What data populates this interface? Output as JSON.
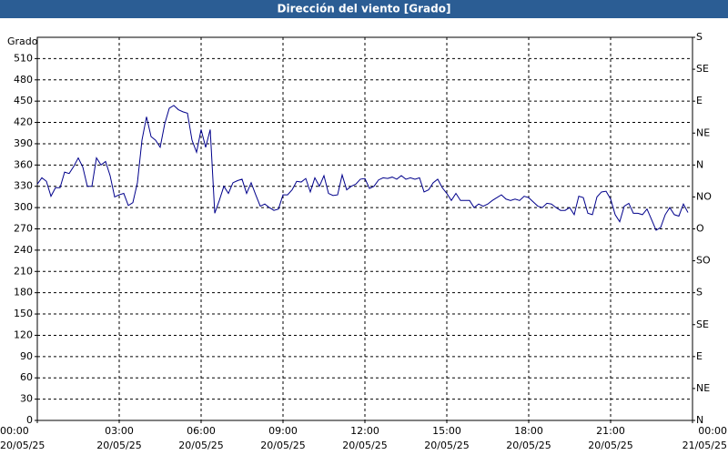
{
  "chart_data": {
    "type": "line",
    "title": "Dirección del viento [Grado]",
    "y_label": "Grado",
    "xlim": [
      0,
      1440
    ],
    "ylim": [
      0,
      540
    ],
    "y2lim": [
      0,
      540
    ],
    "grid": true,
    "xticks": [
      {
        "value": 0,
        "label": [
          "00:00",
          "20/05/25"
        ]
      },
      {
        "value": 180,
        "label": [
          "03:00",
          "20/05/25"
        ]
      },
      {
        "value": 360,
        "label": [
          "06:00",
          "20/05/25"
        ]
      },
      {
        "value": 540,
        "label": [
          "09:00",
          "20/05/25"
        ]
      },
      {
        "value": 720,
        "label": [
          "12:00",
          "20/05/25"
        ]
      },
      {
        "value": 900,
        "label": [
          "15:00",
          "20/05/25"
        ]
      },
      {
        "value": 1080,
        "label": [
          "18:00",
          "20/05/25"
        ]
      },
      {
        "value": 1260,
        "label": [
          "21:00",
          "20/05/25"
        ]
      },
      {
        "value": 1440,
        "label": [
          "00:00",
          "21/05/25"
        ]
      }
    ],
    "yticks": [
      0,
      30,
      60,
      90,
      120,
      150,
      180,
      210,
      240,
      270,
      300,
      330,
      360,
      390,
      420,
      450,
      480,
      510
    ],
    "y2ticks": [
      {
        "value": 0,
        "label": "N"
      },
      {
        "value": 45,
        "label": "NE"
      },
      {
        "value": 90,
        "label": "E"
      },
      {
        "value": 135,
        "label": "SE"
      },
      {
        "value": 180,
        "label": "S"
      },
      {
        "value": 225,
        "label": "SO"
      },
      {
        "value": 270,
        "label": "O"
      },
      {
        "value": 315,
        "label": "NO"
      },
      {
        "value": 360,
        "label": "N"
      },
      {
        "value": 405,
        "label": "NE"
      },
      {
        "value": 450,
        "label": "E"
      },
      {
        "value": 495,
        "label": "SE"
      },
      {
        "value": 540,
        "label": "S"
      }
    ],
    "x": [
      0,
      10,
      20,
      30,
      40,
      50,
      60,
      70,
      80,
      90,
      100,
      110,
      120,
      130,
      140,
      150,
      160,
      170,
      180,
      190,
      200,
      210,
      220,
      230,
      240,
      250,
      260,
      270,
      280,
      290,
      300,
      310,
      320,
      330,
      340,
      350,
      360,
      370,
      380,
      390,
      400,
      410,
      420,
      430,
      440,
      450,
      460,
      470,
      480,
      490,
      500,
      510,
      520,
      530,
      540,
      550,
      560,
      570,
      580,
      590,
      600,
      610,
      620,
      630,
      640,
      650,
      660,
      670,
      680,
      690,
      700,
      710,
      720,
      730,
      740,
      750,
      760,
      770,
      780,
      790,
      800,
      810,
      820,
      830,
      840,
      850,
      860,
      870,
      880,
      890,
      900,
      910,
      920,
      930,
      940,
      950,
      960,
      970,
      980,
      990,
      1000,
      1010,
      1020,
      1030,
      1040,
      1050,
      1060,
      1070,
      1080,
      1090,
      1100,
      1110,
      1120,
      1130,
      1140,
      1150,
      1160,
      1170,
      1180,
      1190,
      1200,
      1210,
      1220,
      1230,
      1240,
      1250,
      1260,
      1270,
      1280,
      1290,
      1300,
      1310,
      1320,
      1330,
      1340,
      1350,
      1360,
      1370,
      1380,
      1390,
      1400,
      1410,
      1420,
      1430
    ],
    "series": [
      {
        "color": "#00008b",
        "values": [
          333,
          342,
          337,
          316,
          328,
          328,
          350,
          348,
          358,
          370,
          357,
          330,
          330,
          370,
          360,
          365,
          345,
          315,
          318,
          320,
          303,
          307,
          335,
          395,
          428,
          400,
          395,
          385,
          418,
          440,
          444,
          438,
          435,
          433,
          395,
          378,
          410,
          385,
          410,
          292,
          310,
          330,
          320,
          335,
          338,
          340,
          320,
          335,
          318,
          302,
          305,
          300,
          296,
          298,
          318,
          318,
          325,
          337,
          336,
          341,
          322,
          342,
          330,
          345,
          320,
          317,
          318,
          346,
          325,
          330,
          333,
          340,
          341,
          327,
          330,
          339,
          342,
          341,
          343,
          340,
          345,
          340,
          342,
          340,
          342,
          322,
          325,
          335,
          340,
          328,
          320,
          310,
          320,
          310,
          310,
          310,
          300,
          305,
          302,
          305,
          310,
          314,
          318,
          312,
          310,
          312,
          310,
          316,
          314,
          308,
          302,
          300,
          306,
          305,
          300,
          296,
          296,
          300,
          290,
          316,
          314,
          292,
          290,
          315,
          322,
          323,
          312,
          290,
          280,
          302,
          306,
          292,
          292,
          290,
          298,
          283,
          268,
          272,
          290,
          300,
          290,
          288,
          305,
          293
        ]
      }
    ]
  }
}
